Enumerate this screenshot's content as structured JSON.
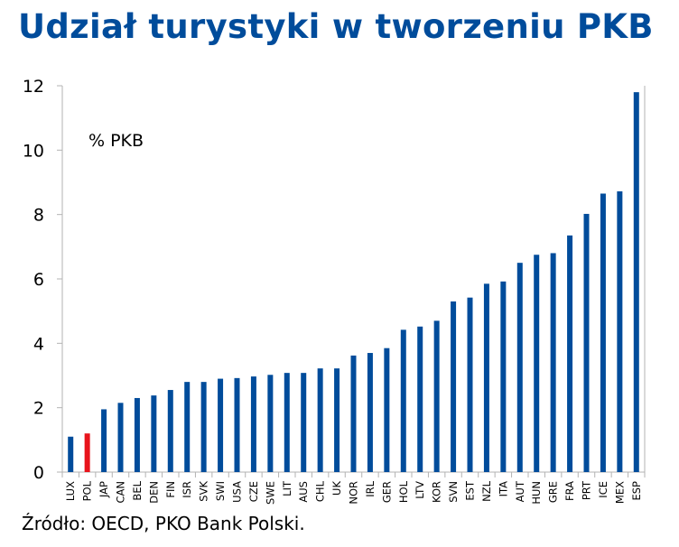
{
  "title": "Udział turystyki w tworzeniu PKB",
  "source": "Źródło: OECD, PKO Bank Polski.",
  "colors": {
    "title": "#004c9b",
    "bar": "#004c9b",
    "highlight": "#e8141c",
    "axis": "#b3b3b3"
  },
  "chart_data": {
    "type": "bar",
    "title": "Udział turystyki w tworzeniu PKB",
    "unit_label": "% PKB",
    "xlabel": "",
    "ylabel": "",
    "ylim": [
      0,
      12
    ],
    "yticks": [
      0,
      2,
      4,
      6,
      8,
      10,
      12
    ],
    "grid": false,
    "highlight": "POL",
    "categories": [
      "LUX",
      "POL",
      "JAP",
      "CAN",
      "BEL",
      "DEN",
      "FIN",
      "ISR",
      "SVK",
      "SWI",
      "USA",
      "CZE",
      "SWE",
      "LIT",
      "AUS",
      "CHL",
      "UK",
      "NOR",
      "IRL",
      "GER",
      "HOL",
      "LTV",
      "KOR",
      "SVN",
      "EST",
      "NZL",
      "ITA",
      "AUT",
      "HUN",
      "GRE",
      "FRA",
      "PRT",
      "ICE",
      "MEX",
      "ESP"
    ],
    "values": [
      1.1,
      1.2,
      1.95,
      2.15,
      2.3,
      2.38,
      2.55,
      2.8,
      2.8,
      2.9,
      2.92,
      2.97,
      3.02,
      3.08,
      3.08,
      3.22,
      3.22,
      3.62,
      3.7,
      3.85,
      4.42,
      4.52,
      4.7,
      5.3,
      5.42,
      5.85,
      5.92,
      6.5,
      6.75,
      6.8,
      7.35,
      8.02,
      8.65,
      8.72,
      11.8
    ]
  }
}
